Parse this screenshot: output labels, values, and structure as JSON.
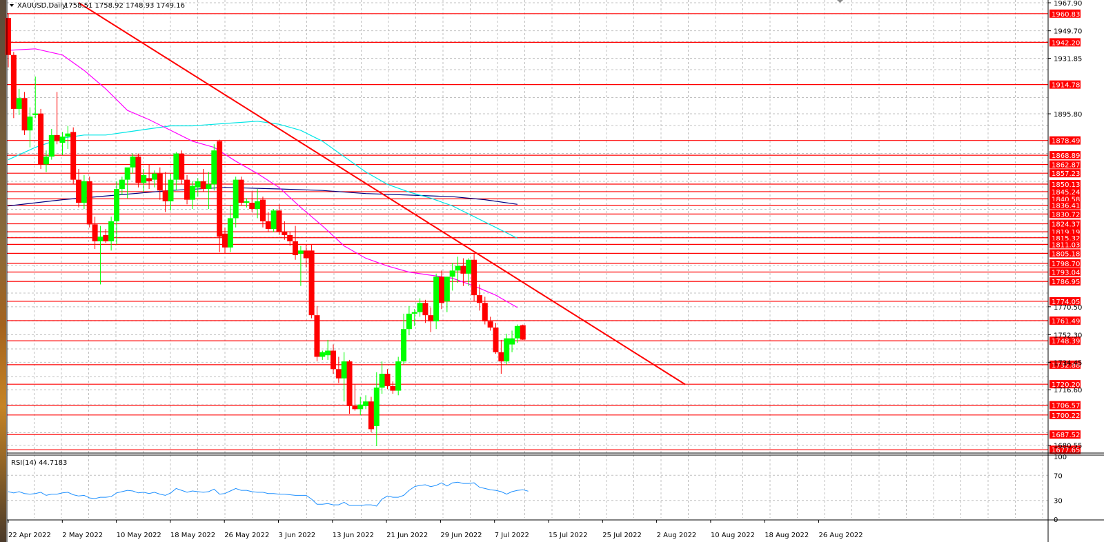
{
  "header": {
    "symbol": "XAUUSD,Daily",
    "ohlc": "1758.51 1758.92 1748.93 1749.16"
  },
  "rsi": {
    "label": "RSI(14) 44.7183",
    "ticks": [
      "100",
      "70",
      "30",
      "0"
    ]
  },
  "price_ticks": [
    "1967.90",
    "1949.70",
    "1931.85",
    "1895.80",
    "1770.50",
    "1752.30",
    "1734.45",
    "1716.60",
    "1680.55"
  ],
  "date_labels": [
    "22 Apr 2022",
    "2 May 2022",
    "10 May 2022",
    "18 May 2022",
    "26 May 2022",
    "3 Jun 2022",
    "13 Jun 2022",
    "21 Jun 2022",
    "29 Jun 2022",
    "7 Jul 2022",
    "15 Jul 2022",
    "25 Jul 2022",
    "2 Aug 2022",
    "10 Aug 2022",
    "18 Aug 2022",
    "26 Aug 2022"
  ],
  "level_labels": [
    "1960.83",
    "1942.20",
    "1914.78",
    "1878.49",
    "1868.89",
    "1862.87",
    "1857.23",
    "1850.13",
    "1845.24",
    "1840.58",
    "1836.41",
    "1830.72",
    "1824.37",
    "1819.19",
    "1815.32",
    "1811.03",
    "1805.18",
    "1798.70",
    "1793.04",
    "1786.95",
    "1774.05",
    "1761.49",
    "1748.39",
    "1732.88",
    "1720.20",
    "1706.57",
    "1700.22",
    "1687.52",
    "1677.65"
  ],
  "colors": {
    "bull": "#00ff00",
    "bear": "#ff0000",
    "level": "#ff0000",
    "ma_fast": "#ff00ff",
    "ma_mid": "#00e5e5",
    "ma_slow": "#000080",
    "rsi_line": "#1e90ff",
    "grid": "#c0c0c0"
  },
  "chart_data": [
    {
      "type": "candlestick",
      "title": "XAUUSD,Daily",
      "ylim": [
        1675.5,
        1969.7
      ],
      "yticks": [
        1967.9,
        1949.7,
        1931.85,
        1895.8,
        1770.5,
        1752.3,
        1734.45,
        1716.6,
        1680.55
      ],
      "x_labels": [
        "22 Apr 2022",
        "2 May 2022",
        "10 May 2022",
        "18 May 2022",
        "26 May 2022",
        "3 Jun 2022",
        "13 Jun 2022",
        "21 Jun 2022",
        "29 Jun 2022",
        "7 Jul 2022",
        "15 Jul 2022",
        "25 Jul 2022",
        "2 Aug 2022",
        "10 Aug 2022",
        "18 Aug 2022",
        "26 Aug 2022"
      ],
      "candles_ohlc": [
        [
          1958.0,
          1961.0,
          1926.0,
          1934.0
        ],
        [
          1934.0,
          1936.0,
          1893.0,
          1899.0
        ],
        [
          1899.0,
          1912.0,
          1895.0,
          1906.0
        ],
        [
          1906.0,
          1910.0,
          1882.0,
          1885.0
        ],
        [
          1885.0,
          1900.0,
          1874.0,
          1894.0
        ],
        [
          1895.0,
          1920.0,
          1893.0,
          1896.0
        ],
        [
          1896.0,
          1899.0,
          1860.0,
          1863.0
        ],
        [
          1863.0,
          1872.0,
          1858.0,
          1868.0
        ],
        [
          1868.0,
          1886.0,
          1866.0,
          1882.0
        ],
        [
          1882.0,
          1910.0,
          1876.0,
          1878.0
        ],
        [
          1877.0,
          1884.0,
          1869.0,
          1881.0
        ],
        [
          1881.0,
          1888.0,
          1873.0,
          1883.0
        ],
        [
          1884.0,
          1887.0,
          1850.0,
          1853.0
        ],
        [
          1853.0,
          1860.0,
          1835.0,
          1838.0
        ],
        [
          1838.0,
          1856.0,
          1834.0,
          1852.0
        ],
        [
          1852.0,
          1855.0,
          1822.0,
          1824.0
        ],
        [
          1824.0,
          1829.0,
          1808.0,
          1813.0
        ],
        [
          1813.0,
          1823.0,
          1785.0,
          1816.0
        ],
        [
          1817.0,
          1821.0,
          1812.0,
          1813.0
        ],
        [
          1813.0,
          1829.0,
          1807.0,
          1826.0
        ],
        [
          1826.0,
          1852.0,
          1811.0,
          1847.0
        ],
        [
          1847.0,
          1855.0,
          1843.0,
          1853.0
        ],
        [
          1853.0,
          1856.0,
          1841.0,
          1861.0
        ],
        [
          1861.0,
          1870.0,
          1857.0,
          1868.0
        ],
        [
          1868.0,
          1870.0,
          1848.0,
          1851.0
        ],
        [
          1851.0,
          1860.0,
          1845.0,
          1856.0
        ],
        [
          1854.0,
          1863.0,
          1847.0,
          1852.0
        ],
        [
          1853.0,
          1859.0,
          1848.0,
          1857.0
        ],
        [
          1857.0,
          1861.0,
          1840.0,
          1846.0
        ],
        [
          1846.0,
          1858.0,
          1832.0,
          1839.0
        ],
        [
          1839.0,
          1857.0,
          1833.0,
          1853.0
        ],
        [
          1853.0,
          1871.0,
          1846.0,
          1870.0
        ],
        [
          1870.0,
          1872.0,
          1850.0,
          1853.0
        ],
        [
          1853.0,
          1856.0,
          1837.0,
          1840.0
        ],
        [
          1840.0,
          1852.0,
          1834.0,
          1849.0
        ],
        [
          1848.0,
          1854.0,
          1842.0,
          1852.0
        ],
        [
          1852.0,
          1860.0,
          1845.0,
          1847.0
        ],
        [
          1847.0,
          1858.0,
          1834.0,
          1850.0
        ],
        [
          1850.0,
          1876.0,
          1846.0,
          1872.0
        ],
        [
          1878.0,
          1879.0,
          1806.0,
          1816.0
        ],
        [
          1818.0,
          1822.0,
          1805.0,
          1809.0
        ],
        [
          1809.0,
          1836.0,
          1806.0,
          1828.0
        ],
        [
          1828.0,
          1855.0,
          1822.0,
          1853.0
        ],
        [
          1853.0,
          1855.0,
          1836.0,
          1838.0
        ],
        [
          1838.0,
          1841.0,
          1835.0,
          1839.0
        ],
        [
          1838.0,
          1845.0,
          1832.0,
          1834.0
        ],
        [
          1834.0,
          1847.0,
          1828.0,
          1839.0
        ],
        [
          1840.0,
          1842.0,
          1822.0,
          1826.0
        ],
        [
          1826.0,
          1832.0,
          1819.0,
          1821.0
        ],
        [
          1821.0,
          1834.0,
          1819.0,
          1833.0
        ],
        [
          1833.0,
          1837.0,
          1817.0,
          1819.0
        ],
        [
          1819.0,
          1826.0,
          1814.0,
          1817.0
        ],
        [
          1817.0,
          1819.0,
          1810.0,
          1813.0
        ],
        [
          1813.0,
          1823.0,
          1801.0,
          1804.0
        ],
        [
          1805.0,
          1810.0,
          1784.0,
          1807.0
        ],
        [
          1807.0,
          1811.0,
          1796.0,
          1802.0
        ],
        [
          1807.0,
          1811.0,
          1763.0,
          1765.0
        ],
        [
          1765.0,
          1771.0,
          1735.0,
          1738.0
        ],
        [
          1738.0,
          1742.0,
          1736.0,
          1741.0
        ],
        [
          1739.0,
          1749.0,
          1736.0,
          1742.0
        ],
        [
          1742.0,
          1746.0,
          1727.0,
          1730.0
        ],
        [
          1730.0,
          1738.0,
          1721.0,
          1724.0
        ],
        [
          1724.0,
          1741.0,
          1709.0,
          1735.0
        ],
        [
          1735.0,
          1736.0,
          1701.0,
          1706.0
        ],
        [
          1706.0,
          1720.0,
          1703.0,
          1704.0
        ],
        [
          1704.0,
          1712.0,
          1700.0,
          1707.0
        ],
        [
          1706.0,
          1713.0,
          1704.0,
          1709.0
        ],
        [
          1709.0,
          1712.0,
          1689.0,
          1691.0
        ],
        [
          1693.0,
          1728.0,
          1680.0,
          1718.0
        ],
        [
          1718.0,
          1735.0,
          1714.0,
          1727.0
        ],
        [
          1727.0,
          1730.0,
          1717.0,
          1719.0
        ],
        [
          1719.0,
          1722.0,
          1714.0,
          1716.0
        ],
        [
          1716.0,
          1738.0,
          1713.0,
          1735.0
        ],
        [
          1735.0,
          1766.0,
          1733.0,
          1756.0
        ],
        [
          1756.0,
          1771.0,
          1752.0,
          1766.0
        ],
        [
          1766.0,
          1769.0,
          1758.0,
          1767.0
        ],
        [
          1767.0,
          1776.0,
          1764.0,
          1773.0
        ],
        [
          1773.0,
          1775.0,
          1760.0,
          1765.0
        ],
        [
          1765.0,
          1770.0,
          1754.0,
          1761.0
        ],
        [
          1761.0,
          1792.0,
          1756.0,
          1790.0
        ],
        [
          1790.0,
          1794.0,
          1769.0,
          1773.0
        ],
        [
          1774.0,
          1790.0,
          1767.0,
          1790.0
        ],
        [
          1790.0,
          1799.0,
          1781.0,
          1794.0
        ],
        [
          1794.0,
          1803.0,
          1786.0,
          1797.0
        ],
        [
          1797.0,
          1802.0,
          1784.0,
          1792.0
        ],
        [
          1792.0,
          1802.0,
          1784.0,
          1801.0
        ],
        [
          1801.0,
          1805.0,
          1774.0,
          1778.0
        ],
        [
          1778.0,
          1785.0,
          1768.0,
          1773.0
        ],
        [
          1773.0,
          1777.0,
          1759.0,
          1761.0
        ],
        [
          1761.0,
          1764.0,
          1755.0,
          1757.0
        ],
        [
          1757.0,
          1760.0,
          1740.0,
          1741.0
        ],
        [
          1741.0,
          1749.0,
          1727.0,
          1735.0
        ],
        [
          1735.0,
          1753.0,
          1733.0,
          1750.0
        ],
        [
          1746.0,
          1755.0,
          1741.0,
          1750.0
        ],
        [
          1750.0,
          1759.0,
          1747.0,
          1758.0
        ],
        [
          1758.51,
          1758.92,
          1748.93,
          1749.16
        ]
      ],
      "horizontal_levels": [
        1960.83,
        1942.2,
        1914.78,
        1878.49,
        1868.89,
        1862.87,
        1857.23,
        1850.13,
        1845.24,
        1840.58,
        1836.41,
        1830.72,
        1824.37,
        1819.19,
        1815.32,
        1811.03,
        1805.18,
        1798.7,
        1793.04,
        1786.95,
        1774.05,
        1761.49,
        1748.39,
        1732.88,
        1720.2,
        1706.57,
        1700.22,
        1687.52,
        1677.65
      ],
      "trendline": {
        "from": {
          "bar": 13,
          "price": 1967.9
        },
        "to": {
          "bar": 125,
          "price": 1720.0
        }
      },
      "ma_fast": [
        [
          0,
          1937
        ],
        [
          5,
          1938
        ],
        [
          10,
          1934
        ],
        [
          14,
          1924
        ],
        [
          18,
          1912
        ],
        [
          22,
          1898
        ],
        [
          26,
          1892
        ],
        [
          30,
          1885
        ],
        [
          34,
          1878
        ],
        [
          38,
          1874
        ],
        [
          42,
          1865
        ],
        [
          46,
          1857
        ],
        [
          50,
          1848
        ],
        [
          54,
          1835
        ],
        [
          58,
          1823
        ],
        [
          62,
          1810
        ],
        [
          66,
          1802
        ],
        [
          70,
          1797
        ],
        [
          74,
          1793
        ],
        [
          78,
          1791
        ],
        [
          82,
          1789
        ],
        [
          86,
          1784
        ],
        [
          90,
          1778
        ],
        [
          94,
          1770
        ]
      ],
      "ma_mid": [
        [
          0,
          1866
        ],
        [
          5,
          1874
        ],
        [
          10,
          1880
        ],
        [
          14,
          1882
        ],
        [
          18,
          1882
        ],
        [
          22,
          1884
        ],
        [
          26,
          1886
        ],
        [
          30,
          1888
        ],
        [
          34,
          1888
        ],
        [
          38,
          1889
        ],
        [
          42,
          1890
        ],
        [
          46,
          1891
        ],
        [
          50,
          1889
        ],
        [
          54,
          1885
        ],
        [
          58,
          1878
        ],
        [
          62,
          1868
        ],
        [
          66,
          1858
        ],
        [
          70,
          1850
        ],
        [
          74,
          1845
        ],
        [
          78,
          1841
        ],
        [
          82,
          1836
        ],
        [
          86,
          1829
        ],
        [
          90,
          1822
        ],
        [
          94,
          1815
        ]
      ],
      "ma_slow": [
        [
          0,
          1836
        ],
        [
          10,
          1840
        ],
        [
          20,
          1843
        ],
        [
          30,
          1846
        ],
        [
          40,
          1848
        ],
        [
          50,
          1847
        ],
        [
          58,
          1846
        ],
        [
          66,
          1844
        ],
        [
          74,
          1843
        ],
        [
          82,
          1842
        ],
        [
          88,
          1840
        ],
        [
          94,
          1837
        ]
      ]
    },
    {
      "type": "line",
      "title": "RSI(14) 44.7183",
      "ylim": [
        0,
        100
      ],
      "yticks": [
        100,
        70,
        30,
        0
      ],
      "values": [
        44,
        42,
        44,
        41,
        40,
        41,
        43,
        38,
        40,
        40,
        42,
        43,
        39,
        37,
        38,
        34,
        33,
        35,
        35,
        36,
        42,
        44,
        46,
        45,
        42,
        43,
        41,
        43,
        40,
        38,
        42,
        49,
        46,
        43,
        45,
        44,
        43,
        44,
        48,
        40,
        41,
        45,
        49,
        46,
        46,
        44,
        43,
        43,
        41,
        41,
        40,
        40,
        39,
        38,
        38,
        38,
        32,
        24,
        24,
        25,
        23,
        23,
        27,
        22,
        22,
        22,
        23,
        23,
        21,
        32,
        37,
        35,
        35,
        38,
        46,
        52,
        54,
        55,
        52,
        54,
        58,
        53,
        58,
        59,
        57,
        57,
        58,
        51,
        49,
        47,
        46,
        44,
        40,
        44,
        46,
        47,
        44.72
      ]
    }
  ]
}
